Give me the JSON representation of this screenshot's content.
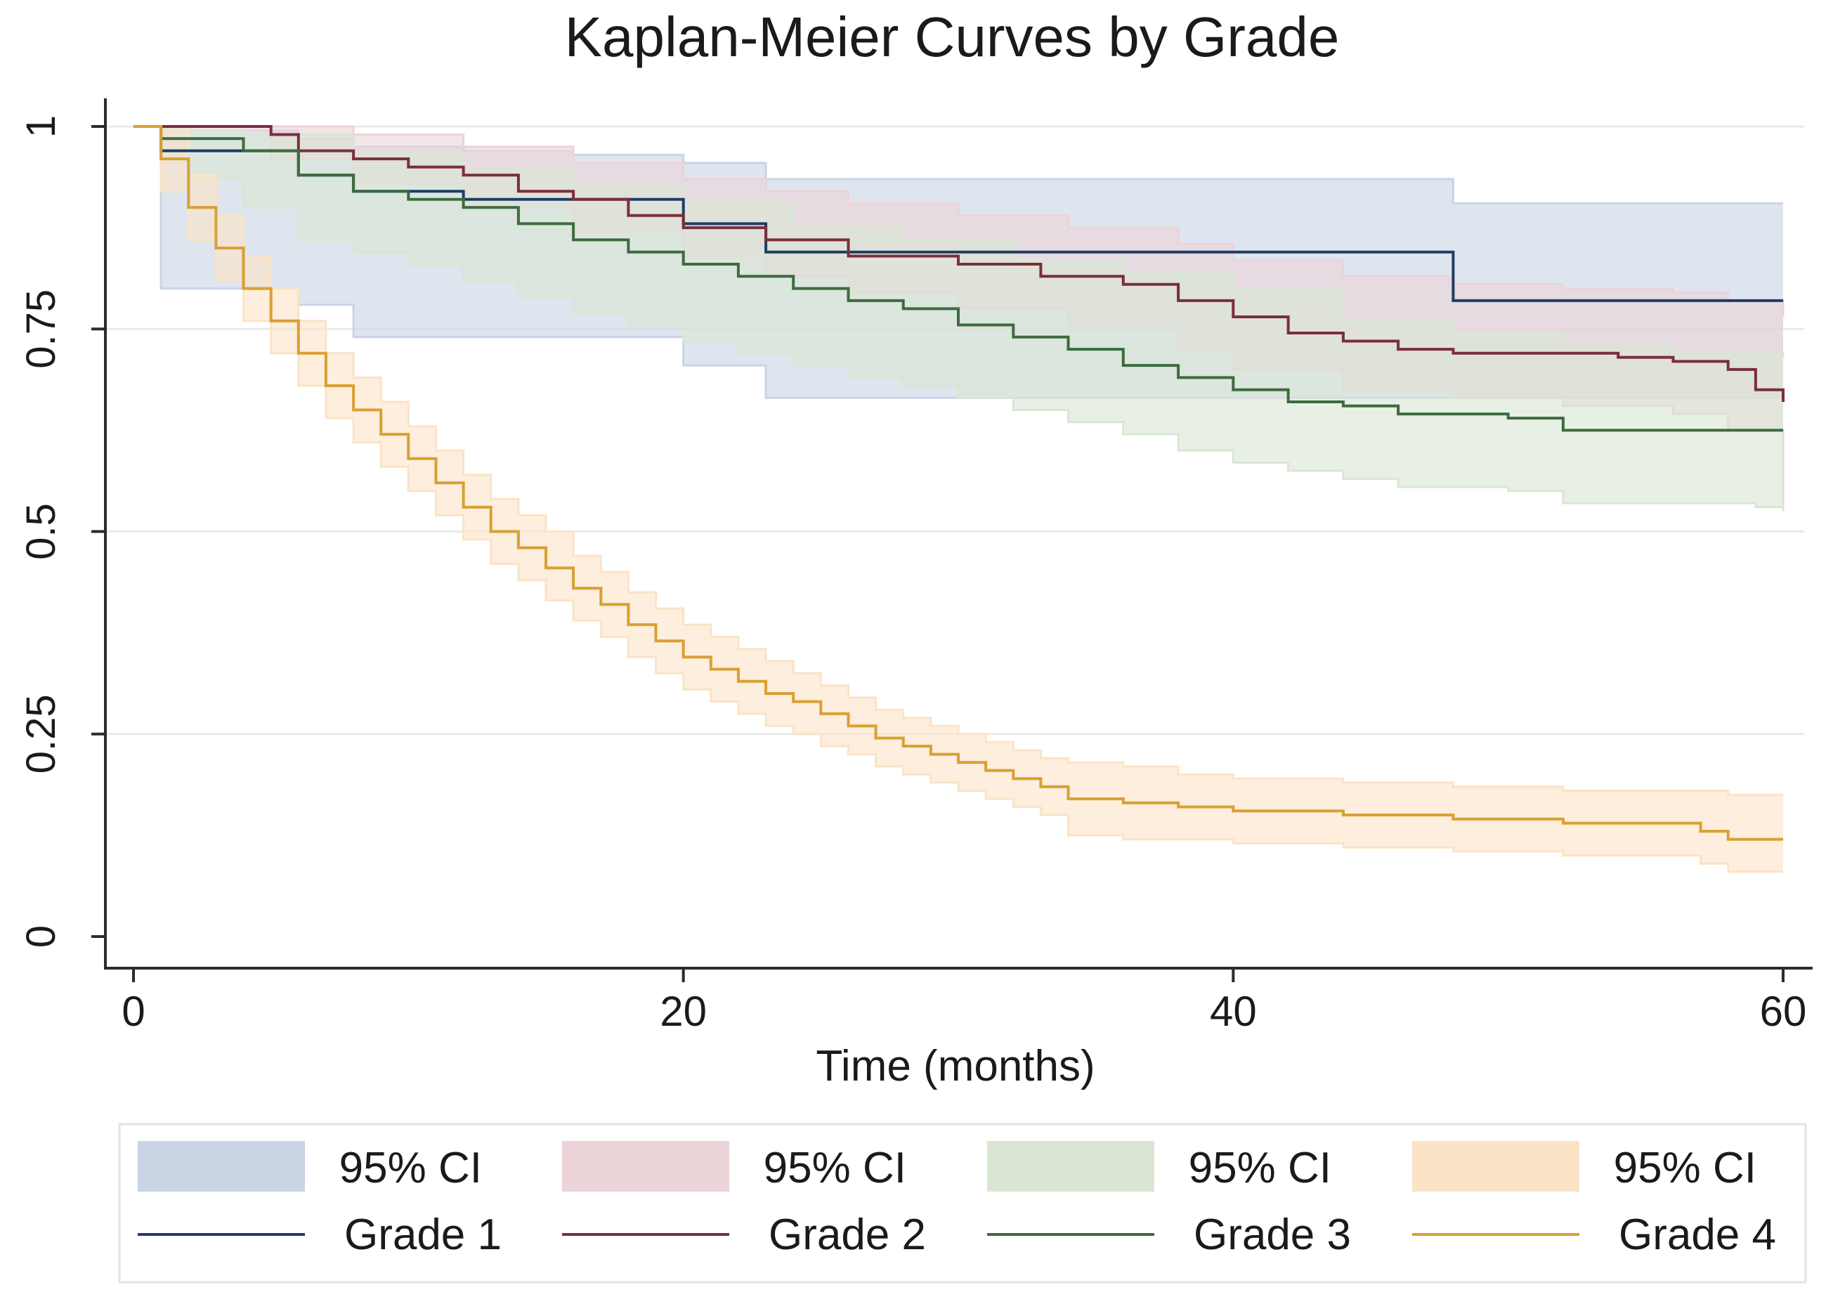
{
  "chart_data": {
    "type": "line",
    "subtype": "kaplan-meier step curves with 95% confidence bands",
    "title": "Kaplan-Meier Curves by Grade",
    "xlabel": "Time (months)",
    "ylabel": "",
    "xlim": [
      0,
      60
    ],
    "ylim": [
      0,
      1
    ],
    "x_ticks": [
      0,
      20,
      40,
      60
    ],
    "x_tick_labels": [
      "0",
      "20",
      "40",
      "60"
    ],
    "y_ticks": [
      0,
      0.25,
      0.5,
      0.75,
      1
    ],
    "y_tick_labels": [
      "0",
      "0.25",
      "0.5",
      "0.75",
      "1"
    ],
    "grid": "horizontal",
    "legend_position": "bottom",
    "legend": [
      {
        "label": "95% CI",
        "kind": "band",
        "series": "Grade 1"
      },
      {
        "label": "95% CI",
        "kind": "band",
        "series": "Grade 2"
      },
      {
        "label": "95% CI",
        "kind": "band",
        "series": "Grade 3"
      },
      {
        "label": "95% CI",
        "kind": "band",
        "series": "Grade 4"
      },
      {
        "label": "Grade 1",
        "kind": "line",
        "series": "Grade 1"
      },
      {
        "label": "Grade 2",
        "kind": "line",
        "series": "Grade 2"
      },
      {
        "label": "Grade 3",
        "kind": "line",
        "series": "Grade 3"
      },
      {
        "label": "Grade 4",
        "kind": "line",
        "series": "Grade 4"
      }
    ],
    "series": [
      {
        "name": "Grade 1",
        "line_color": "#1f3c66",
        "band_color": "#c9d4e4",
        "survival": {
          "x": [
            0,
            1,
            2,
            6,
            8,
            12,
            16,
            20,
            23,
            48,
            60
          ],
          "y": [
            1,
            0.97,
            0.97,
            0.94,
            0.92,
            0.91,
            0.91,
            0.88,
            0.845,
            0.785,
            0.785
          ]
        },
        "upper": {
          "x": [
            0,
            1,
            2,
            6,
            8,
            12,
            16,
            20,
            23,
            48,
            60
          ],
          "y": [
            1,
            1,
            0.995,
            0.985,
            0.975,
            0.97,
            0.965,
            0.955,
            0.935,
            0.905,
            0.905
          ]
        },
        "lower": {
          "x": [
            0,
            1,
            2,
            6,
            8,
            12,
            16,
            20,
            23,
            48,
            60
          ],
          "y": [
            1,
            0.8,
            0.8,
            0.78,
            0.74,
            0.74,
            0.74,
            0.705,
            0.665,
            0.665,
            0.665
          ]
        }
      },
      {
        "name": "Grade 2",
        "line_color": "#7a2e3c",
        "band_color": "#ecd3d8",
        "survival": {
          "x": [
            0,
            2,
            5,
            6,
            8,
            10,
            12,
            14,
            16,
            18,
            20,
            23,
            26,
            30,
            33,
            36,
            38,
            40,
            42,
            44,
            46,
            48,
            50,
            52,
            54,
            56,
            58,
            59,
            60
          ],
          "y": [
            1,
            1,
            0.99,
            0.97,
            0.96,
            0.95,
            0.94,
            0.92,
            0.91,
            0.89,
            0.875,
            0.86,
            0.84,
            0.83,
            0.815,
            0.805,
            0.785,
            0.765,
            0.745,
            0.735,
            0.725,
            0.72,
            0.72,
            0.72,
            0.715,
            0.71,
            0.7,
            0.675,
            0.66
          ]
        },
        "upper": {
          "x": [
            0,
            5,
            8,
            12,
            16,
            20,
            23,
            26,
            30,
            34,
            38,
            40,
            44,
            48,
            52,
            56,
            58,
            60
          ],
          "y": [
            1,
            1,
            0.99,
            0.975,
            0.955,
            0.935,
            0.92,
            0.905,
            0.89,
            0.875,
            0.855,
            0.835,
            0.815,
            0.805,
            0.8,
            0.795,
            0.785,
            0.765
          ]
        },
        "lower": {
          "x": [
            0,
            2,
            5,
            8,
            12,
            16,
            20,
            23,
            26,
            30,
            34,
            38,
            40,
            44,
            48,
            52,
            56,
            58,
            60
          ],
          "y": [
            1,
            0.995,
            0.96,
            0.93,
            0.9,
            0.87,
            0.84,
            0.815,
            0.795,
            0.775,
            0.755,
            0.725,
            0.7,
            0.675,
            0.665,
            0.655,
            0.645,
            0.625,
            0.53
          ]
        }
      },
      {
        "name": "Grade 3",
        "line_color": "#3e6b3e",
        "band_color": "#d9e6d3",
        "survival": {
          "x": [
            0,
            1,
            4,
            6,
            8,
            10,
            12,
            14,
            16,
            18,
            20,
            22,
            24,
            26,
            28,
            30,
            32,
            34,
            36,
            38,
            40,
            42,
            44,
            46,
            48,
            50,
            52,
            60
          ],
          "y": [
            1,
            0.985,
            0.97,
            0.94,
            0.92,
            0.91,
            0.9,
            0.88,
            0.86,
            0.845,
            0.83,
            0.815,
            0.8,
            0.785,
            0.775,
            0.755,
            0.74,
            0.725,
            0.705,
            0.69,
            0.675,
            0.66,
            0.655,
            0.645,
            0.645,
            0.64,
            0.625,
            0.625
          ]
        },
        "upper": {
          "x": [
            0,
            1,
            4,
            8,
            12,
            16,
            20,
            24,
            28,
            32,
            36,
            40,
            44,
            48,
            52,
            56,
            60
          ],
          "y": [
            1,
            0.995,
            0.99,
            0.965,
            0.945,
            0.925,
            0.905,
            0.875,
            0.86,
            0.835,
            0.82,
            0.8,
            0.76,
            0.745,
            0.73,
            0.72,
            0.715
          ]
        },
        "lower": {
          "x": [
            0,
            1,
            2,
            4,
            6,
            8,
            10,
            12,
            14,
            16,
            18,
            20,
            22,
            24,
            26,
            28,
            30,
            32,
            34,
            36,
            38,
            40,
            42,
            44,
            46,
            50,
            52,
            59,
            60
          ],
          "y": [
            1,
            0.96,
            0.935,
            0.9,
            0.86,
            0.845,
            0.83,
            0.81,
            0.79,
            0.77,
            0.755,
            0.735,
            0.72,
            0.705,
            0.69,
            0.68,
            0.665,
            0.65,
            0.635,
            0.62,
            0.6,
            0.585,
            0.575,
            0.565,
            0.555,
            0.55,
            0.535,
            0.53,
            0.525
          ]
        }
      },
      {
        "name": "Grade 4",
        "line_color": "#d9a032",
        "band_color": "#fbe3c6",
        "survival": {
          "x": [
            0,
            1,
            2,
            3,
            4,
            5,
            6,
            7,
            8,
            9,
            10,
            11,
            12,
            13,
            14,
            15,
            16,
            17,
            18,
            19,
            20,
            21,
            22,
            23,
            24,
            25,
            26,
            27,
            28,
            29,
            30,
            31,
            32,
            33,
            34,
            36,
            38,
            40,
            44,
            48,
            52,
            56,
            57,
            58,
            60
          ],
          "y": [
            1,
            0.96,
            0.9,
            0.85,
            0.8,
            0.76,
            0.72,
            0.68,
            0.65,
            0.62,
            0.59,
            0.56,
            0.53,
            0.5,
            0.48,
            0.455,
            0.43,
            0.41,
            0.385,
            0.365,
            0.345,
            0.33,
            0.315,
            0.3,
            0.29,
            0.275,
            0.26,
            0.245,
            0.235,
            0.225,
            0.215,
            0.205,
            0.195,
            0.185,
            0.17,
            0.165,
            0.16,
            0.155,
            0.15,
            0.145,
            0.14,
            0.14,
            0.13,
            0.12,
            0.12
          ]
        },
        "upper": {
          "x": [
            0,
            1,
            2,
            3,
            4,
            5,
            6,
            7,
            8,
            9,
            10,
            11,
            12,
            13,
            14,
            15,
            16,
            17,
            18,
            19,
            20,
            21,
            22,
            23,
            24,
            25,
            26,
            27,
            28,
            29,
            30,
            31,
            32,
            33,
            34,
            36,
            38,
            40,
            44,
            48,
            52,
            56,
            58,
            60
          ],
          "y": [
            1,
            1,
            0.94,
            0.89,
            0.84,
            0.8,
            0.76,
            0.72,
            0.69,
            0.66,
            0.63,
            0.6,
            0.57,
            0.54,
            0.52,
            0.5,
            0.47,
            0.45,
            0.425,
            0.405,
            0.385,
            0.37,
            0.355,
            0.34,
            0.325,
            0.31,
            0.295,
            0.28,
            0.27,
            0.26,
            0.25,
            0.24,
            0.23,
            0.22,
            0.215,
            0.21,
            0.2,
            0.195,
            0.19,
            0.185,
            0.18,
            0.18,
            0.175,
            0.175
          ]
        },
        "lower": {
          "x": [
            0,
            1,
            2,
            3,
            4,
            5,
            6,
            7,
            8,
            9,
            10,
            11,
            12,
            13,
            14,
            15,
            16,
            17,
            18,
            19,
            20,
            21,
            22,
            23,
            24,
            25,
            26,
            27,
            28,
            29,
            30,
            31,
            32,
            33,
            34,
            36,
            38,
            40,
            44,
            48,
            52,
            56,
            57,
            58,
            60
          ],
          "y": [
            1,
            0.92,
            0.86,
            0.81,
            0.76,
            0.72,
            0.68,
            0.64,
            0.61,
            0.58,
            0.55,
            0.52,
            0.49,
            0.46,
            0.44,
            0.415,
            0.39,
            0.37,
            0.345,
            0.325,
            0.305,
            0.29,
            0.275,
            0.26,
            0.25,
            0.235,
            0.225,
            0.21,
            0.2,
            0.19,
            0.18,
            0.17,
            0.16,
            0.15,
            0.125,
            0.12,
            0.12,
            0.115,
            0.11,
            0.105,
            0.1,
            0.1,
            0.09,
            0.08,
            0.08
          ]
        }
      }
    ]
  }
}
